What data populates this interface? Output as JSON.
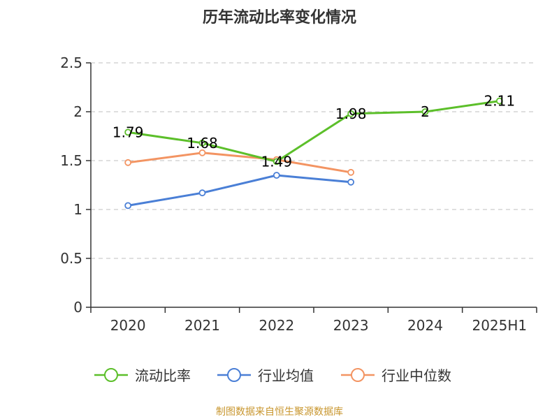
{
  "colors": {
    "current_ratio": "#5cbf2a",
    "industry_avg": "#4a7fd6",
    "industry_median": "#f39462",
    "grid": "#cccccc",
    "axis": "#333333",
    "source": "#c8962e"
  },
  "chart_data": {
    "type": "line",
    "title": "历年流动比率变化情况",
    "xlabel": "",
    "ylabel": "",
    "categories": [
      "2020",
      "2021",
      "2022",
      "2023",
      "2024",
      "2025H1"
    ],
    "ylim": [
      0,
      2.5
    ],
    "yticks": [
      "0",
      "0.5",
      "1",
      "1.5",
      "2",
      "2.5"
    ],
    "grid": true,
    "legend_position": "bottom",
    "series": [
      {
        "name": "流动比率",
        "values": [
          1.79,
          1.68,
          1.49,
          1.98,
          2,
          2.11
        ],
        "labels": [
          "1.79",
          "1.68",
          "1.49",
          "1.98",
          "2",
          "2.11"
        ],
        "color": "#5cbf2a"
      },
      {
        "name": "行业均值",
        "values": [
          1.04,
          1.17,
          1.35,
          1.28,
          null,
          null
        ],
        "labels": [],
        "color": "#4a7fd6"
      },
      {
        "name": "行业中位数",
        "values": [
          1.48,
          1.58,
          1.51,
          1.38,
          null,
          null
        ],
        "labels": [],
        "color": "#f39462"
      }
    ]
  },
  "source_text": "制图数据来自恒生聚源数据库"
}
